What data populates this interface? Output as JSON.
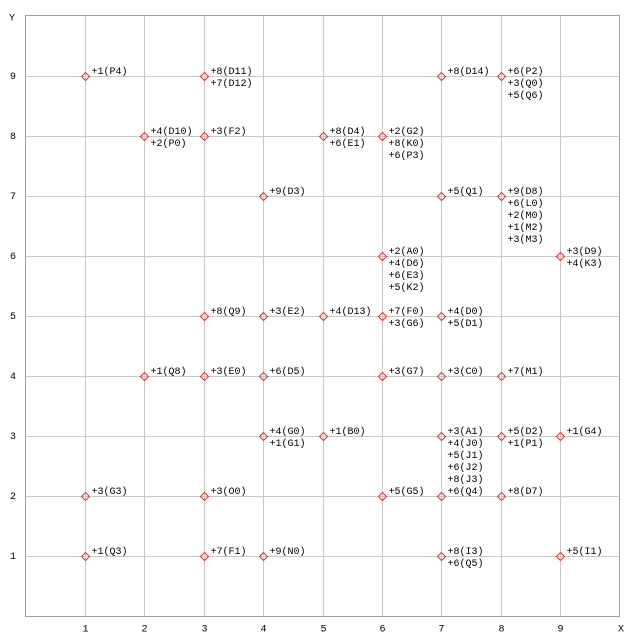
{
  "chart_data": {
    "type": "scatter",
    "xlabel": "X",
    "ylabel": "Y",
    "xlim": [
      0,
      10
    ],
    "ylim": [
      0,
      10
    ],
    "xticks": [
      1,
      2,
      3,
      4,
      5,
      6,
      7,
      8,
      9
    ],
    "yticks": [
      1,
      2,
      3,
      4,
      5,
      6,
      7,
      8,
      9
    ],
    "grid": true,
    "color": "#e03030",
    "points": [
      {
        "x": 1,
        "y": 9,
        "labels": [
          "+1(P4)"
        ]
      },
      {
        "x": 3,
        "y": 9,
        "labels": [
          "+8(D11)",
          "+7(D12)"
        ]
      },
      {
        "x": 7,
        "y": 9,
        "labels": [
          "+8(D14)"
        ]
      },
      {
        "x": 8,
        "y": 9,
        "labels": [
          "+6(P2)",
          "+3(Q0)",
          "+5(Q6)"
        ]
      },
      {
        "x": 2,
        "y": 8,
        "labels": [
          "+4(D10)",
          "+2(P0)"
        ]
      },
      {
        "x": 3,
        "y": 8,
        "labels": [
          "+3(F2)"
        ]
      },
      {
        "x": 5,
        "y": 8,
        "labels": [
          "+8(D4)",
          "+6(E1)"
        ]
      },
      {
        "x": 6,
        "y": 8,
        "labels": [
          "+2(G2)",
          "+8(K0)",
          "+6(P3)"
        ]
      },
      {
        "x": 4,
        "y": 7,
        "labels": [
          "+9(D3)"
        ]
      },
      {
        "x": 7,
        "y": 7,
        "labels": [
          "+5(Q1)"
        ]
      },
      {
        "x": 8,
        "y": 7,
        "labels": [
          "+9(D8)",
          "+6(L0)",
          "+2(M0)",
          "+1(M2)",
          "+3(M3)"
        ]
      },
      {
        "x": 6,
        "y": 6,
        "labels": [
          "+2(A0)",
          "+4(D6)",
          "+6(E3)",
          "+5(K2)"
        ]
      },
      {
        "x": 9,
        "y": 6,
        "labels": [
          "+3(D9)",
          "+4(K3)"
        ]
      },
      {
        "x": 3,
        "y": 5,
        "labels": [
          "+8(Q9)"
        ]
      },
      {
        "x": 4,
        "y": 5,
        "labels": [
          "+3(E2)"
        ]
      },
      {
        "x": 5,
        "y": 5,
        "labels": [
          "+4(D13)"
        ]
      },
      {
        "x": 6,
        "y": 5,
        "labels": [
          "+7(F0)",
          "+3(G6)"
        ]
      },
      {
        "x": 7,
        "y": 5,
        "labels": [
          "+4(D0)",
          "+5(D1)"
        ]
      },
      {
        "x": 2,
        "y": 4,
        "labels": [
          "+1(Q8)"
        ]
      },
      {
        "x": 3,
        "y": 4,
        "labels": [
          "+3(E0)"
        ]
      },
      {
        "x": 4,
        "y": 4,
        "labels": [
          "+6(D5)"
        ]
      },
      {
        "x": 6,
        "y": 4,
        "labels": [
          "+3(G7)"
        ]
      },
      {
        "x": 7,
        "y": 4,
        "labels": [
          "+3(C0)"
        ]
      },
      {
        "x": 8,
        "y": 4,
        "labels": [
          "+7(M1)"
        ]
      },
      {
        "x": 4,
        "y": 3,
        "labels": [
          "+4(G0)",
          "+1(G1)"
        ]
      },
      {
        "x": 5,
        "y": 3,
        "labels": [
          "+1(B0)"
        ]
      },
      {
        "x": 7,
        "y": 3,
        "labels": [
          "+3(A1)",
          "+4(J0)",
          "+5(J1)",
          "+6(J2)",
          "+8(J3)"
        ]
      },
      {
        "x": 8,
        "y": 3,
        "labels": [
          "+5(D2)",
          "+1(P1)"
        ]
      },
      {
        "x": 9,
        "y": 3,
        "labels": [
          "+1(G4)"
        ]
      },
      {
        "x": 1,
        "y": 2,
        "labels": [
          "+3(G3)"
        ]
      },
      {
        "x": 3,
        "y": 2,
        "labels": [
          "+3(O0)"
        ]
      },
      {
        "x": 6,
        "y": 2,
        "labels": [
          "+5(G5)"
        ]
      },
      {
        "x": 7,
        "y": 2,
        "labels": [
          "+6(Q4)"
        ]
      },
      {
        "x": 8,
        "y": 2,
        "labels": [
          "+8(D7)"
        ]
      },
      {
        "x": 1,
        "y": 1,
        "labels": [
          "+1(Q3)"
        ]
      },
      {
        "x": 3,
        "y": 1,
        "labels": [
          "+7(F1)"
        ]
      },
      {
        "x": 4,
        "y": 1,
        "labels": [
          "+9(N0)"
        ]
      },
      {
        "x": 7,
        "y": 1,
        "labels": [
          "+8(I3)",
          "+6(Q5)"
        ]
      },
      {
        "x": 9,
        "y": 1,
        "labels": [
          "+5(I1)"
        ]
      }
    ]
  }
}
